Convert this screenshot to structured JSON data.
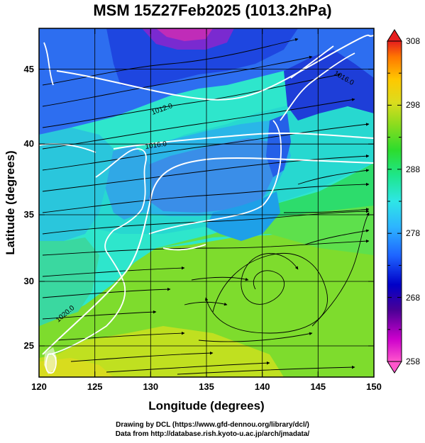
{
  "title": "MSM 15Z27Feb2025 (1013.2hPa)",
  "axes": {
    "xlabel": "Longitude (degrees)",
    "ylabel": "Latitude  (degrees)",
    "xticks": [
      "120",
      "125",
      "130",
      "135",
      "140",
      "145",
      "150"
    ],
    "yticks": [
      "25",
      "30",
      "35",
      "40",
      "45"
    ],
    "xrange": [
      120,
      150
    ],
    "yrange": [
      22.4,
      47.6
    ]
  },
  "colorbar": {
    "ticks": [
      "258",
      "268",
      "278",
      "288",
      "298",
      "308"
    ],
    "range": [
      258,
      308
    ],
    "colors": [
      "#ff55cc",
      "#cc00cc",
      "#4b0096",
      "#0000c8",
      "#1e64ff",
      "#2db4ff",
      "#2ee6e6",
      "#1ee68c",
      "#2ddc2d",
      "#8cdc1e",
      "#dcdc1e",
      "#ffc800",
      "#ff7800",
      "#e61e1e"
    ]
  },
  "isobar_labels": [
    "1012.0",
    "1016.0",
    "1016.0",
    "1020.0"
  ],
  "credits": [
    "Drawing by DCL (https://www.gfd-dennou.org/library/dcl/)",
    "Data from http://database.rish.kyoto-u.ac.jp/arch/jmadata/"
  ]
}
